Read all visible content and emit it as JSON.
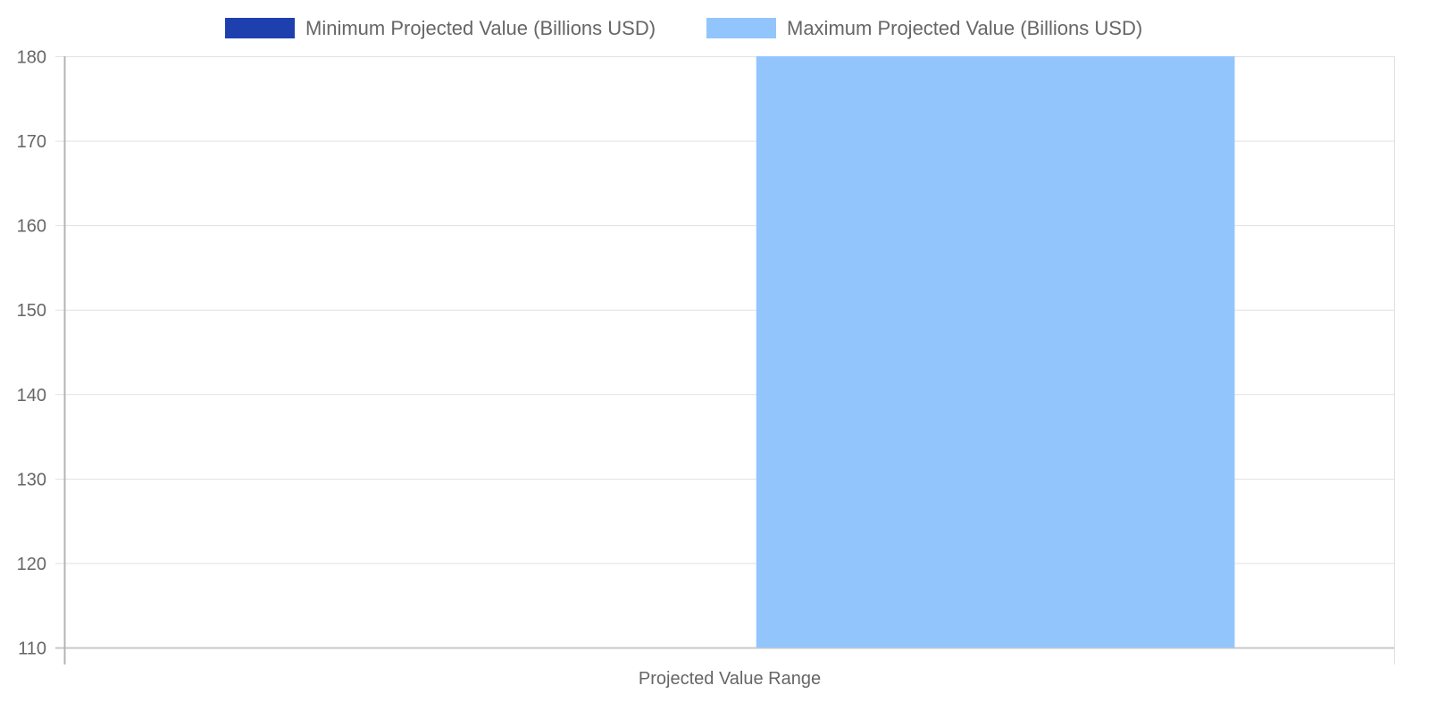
{
  "chart_data": {
    "type": "bar",
    "categories": [
      "Projected Value Range"
    ],
    "series": [
      {
        "name": "Minimum Projected Value (Billions USD)",
        "values": [
          110
        ],
        "color": "#1e40af"
      },
      {
        "name": "Maximum Projected Value (Billions USD)",
        "values": [
          180
        ],
        "color": "#93c5fd"
      }
    ],
    "xlabel": "",
    "ylabel": "",
    "ylim": [
      110,
      180
    ],
    "yticks": [
      110,
      120,
      130,
      140,
      150,
      160,
      170,
      180
    ],
    "grid": true,
    "legend_position": "top"
  }
}
